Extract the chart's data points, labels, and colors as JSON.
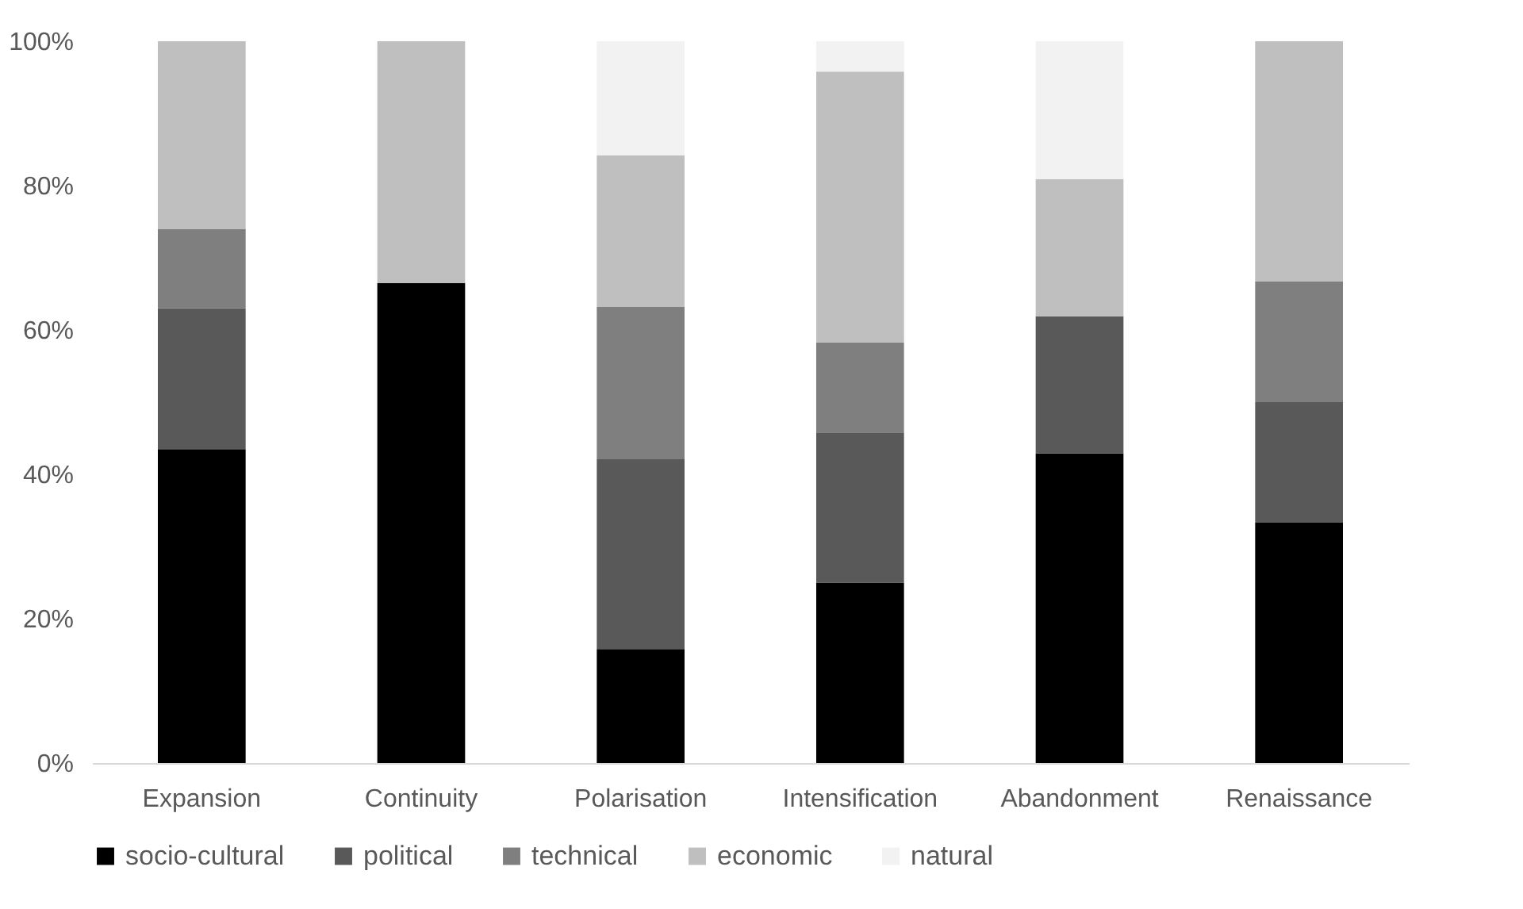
{
  "chart_data": {
    "type": "bar",
    "stacked": true,
    "categories": [
      "Expansion",
      "Continuity",
      "Polarisation",
      "Intensification",
      "Abandonment",
      "Renaissance"
    ],
    "series": [
      {
        "name": "socio-cultural",
        "color": "#000000",
        "values": [
          43.5,
          66.5,
          15.8,
          25,
          42.9,
          33.3
        ]
      },
      {
        "name": "political",
        "color": "#595959",
        "values": [
          19.5,
          0,
          26.3,
          20.8,
          19,
          16.7
        ]
      },
      {
        "name": "technical",
        "color": "#7f7f7f",
        "values": [
          11,
          0,
          21.1,
          12.5,
          0,
          16.7
        ]
      },
      {
        "name": "economic",
        "color": "#bfbfbf",
        "values": [
          26,
          33.5,
          21,
          37.5,
          19,
          33.3
        ]
      },
      {
        "name": "natural",
        "color": "#f2f2f2",
        "values": [
          0,
          0,
          15.8,
          4.2,
          19.1,
          0
        ]
      }
    ],
    "ylim": [
      0,
      100
    ],
    "yticks": [
      {
        "value": 0,
        "label": "0%"
      },
      {
        "value": 20,
        "label": "20%"
      },
      {
        "value": 40,
        "label": "40%"
      },
      {
        "value": 60,
        "label": "60%"
      },
      {
        "value": 80,
        "label": "80%"
      },
      {
        "value": 100,
        "label": "100%"
      }
    ],
    "grid": false,
    "legend": "bottom"
  }
}
